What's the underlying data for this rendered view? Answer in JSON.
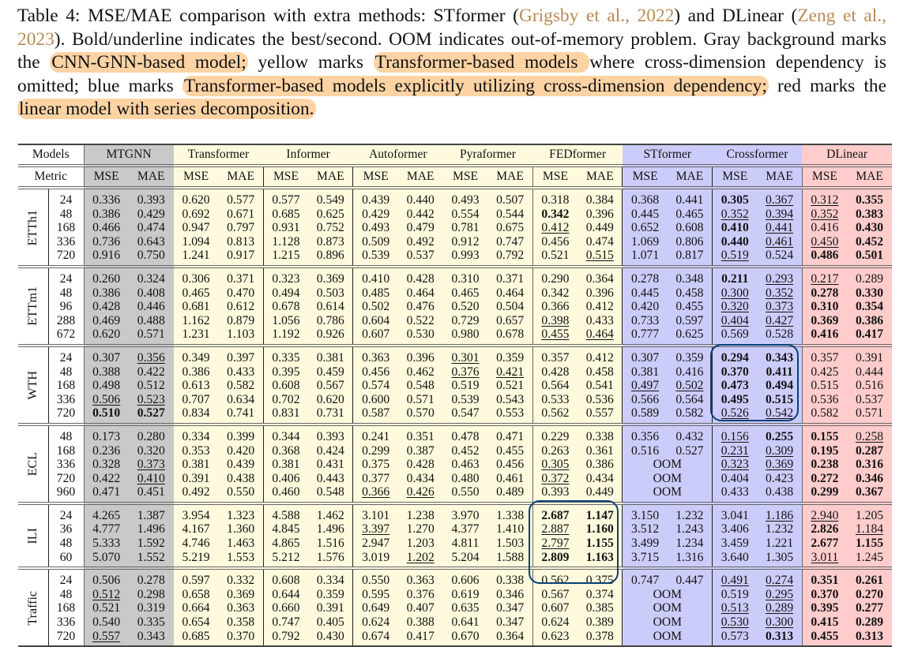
{
  "caption": {
    "p1": "Table 4: MSE/MAE comparison with extra methods: STformer (",
    "cite1": "Grigsby et al., 2022",
    "p2": ") and DLinear (",
    "cite2": "Zeng et al., 2023",
    "p3": "). Bold/underline indicates the best/second. OOM indicates out-of-memory problem. Gray background marks the ",
    "hl1": "CNN-GNN-based model;",
    "p4": " yellow marks ",
    "hl2": "Transformer-based models ",
    "p5": "where cross-dimension dependency is omitted; blue marks ",
    "hl3": "Transformer-based models explicitly utilizing cross-dimension dependency;",
    "p6": " red marks the ",
    "hl4": "linear model with series decomposition."
  },
  "table": {
    "models_label": "Models",
    "metric_label": "Metric",
    "models": [
      {
        "name": "MTGNN",
        "group": "gray"
      },
      {
        "name": "Transformer",
        "group": "yellow"
      },
      {
        "name": "Informer",
        "group": "yellow"
      },
      {
        "name": "Autoformer",
        "group": "yellow"
      },
      {
        "name": "Pyraformer",
        "group": "yellow"
      },
      {
        "name": "FEDformer",
        "group": "yellow"
      },
      {
        "name": "STformer",
        "group": "blue"
      },
      {
        "name": "Crossformer",
        "group": "blue"
      },
      {
        "name": "DLinear",
        "group": "red"
      }
    ],
    "metrics": [
      "MSE",
      "MAE"
    ],
    "colors": {
      "gray": "#c9c9c9",
      "yellow": "#fffadd",
      "blue": "#ccccfa",
      "red": "#ffcccc",
      "highlight": "#fdd3a4",
      "annotation": "#0b3f79"
    },
    "datasets": [
      {
        "name": "ETTh1",
        "rows": [
          {
            "h": "24",
            "v": [
              "0.336",
              "0.393",
              "0.620",
              "0.577",
              "0.577",
              "0.549",
              "0.439",
              "0.440",
              "0.493",
              "0.507",
              "0.318",
              "0.384",
              "0.368",
              "0.441",
              "**0.305",
              "_0.367",
              "_0.312",
              "**0.355"
            ]
          },
          {
            "h": "48",
            "v": [
              "0.386",
              "0.429",
              "0.692",
              "0.671",
              "0.685",
              "0.625",
              "0.429",
              "0.442",
              "0.554",
              "0.544",
              "**0.342",
              "0.396",
              "0.445",
              "0.465",
              "_0.352",
              "_0.394",
              "_0.352",
              "**0.383"
            ]
          },
          {
            "h": "168",
            "v": [
              "0.466",
              "0.474",
              "0.947",
              "0.797",
              "0.931",
              "0.752",
              "0.493",
              "0.479",
              "0.781",
              "0.675",
              "_0.412",
              "0.449",
              "0.652",
              "0.608",
              "**0.410",
              "_0.441",
              "0.416",
              "**0.430"
            ]
          },
          {
            "h": "336",
            "v": [
              "0.736",
              "0.643",
              "1.094",
              "0.813",
              "1.128",
              "0.873",
              "0.509",
              "0.492",
              "0.912",
              "0.747",
              "0.456",
              "0.474",
              "1.069",
              "0.806",
              "**0.440",
              "_0.461",
              "_0.450",
              "**0.452"
            ]
          },
          {
            "h": "720",
            "v": [
              "0.916",
              "0.750",
              "1.241",
              "0.917",
              "1.215",
              "0.896",
              "0.539",
              "0.537",
              "0.993",
              "0.792",
              "0.521",
              "_0.515",
              "1.071",
              "0.817",
              "_0.519",
              "0.524",
              "**0.486",
              "**0.501"
            ]
          }
        ]
      },
      {
        "name": "ETTm1",
        "rows": [
          {
            "h": "24",
            "v": [
              "0.260",
              "0.324",
              "0.306",
              "0.371",
              "0.323",
              "0.369",
              "0.410",
              "0.428",
              "0.310",
              "0.371",
              "0.290",
              "0.364",
              "0.278",
              "0.348",
              "**0.211",
              "_0.293",
              "_0.217",
              "0.289"
            ]
          },
          {
            "h": "48",
            "v": [
              "0.386",
              "0.408",
              "0.465",
              "0.470",
              "0.494",
              "0.503",
              "0.485",
              "0.464",
              "0.465",
              "0.464",
              "0.342",
              "0.396",
              "0.445",
              "0.458",
              "_0.300",
              "_0.352",
              "**0.278",
              "**0.330"
            ]
          },
          {
            "h": "96",
            "v": [
              "0.428",
              "0.446",
              "0.681",
              "0.612",
              "0.678",
              "0.614",
              "0.502",
              "0.476",
              "0.520",
              "0.504",
              "0.366",
              "0.412",
              "0.420",
              "0.455",
              "_0.320",
              "_0.373",
              "**0.310",
              "**0.354"
            ]
          },
          {
            "h": "288",
            "v": [
              "0.469",
              "0.488",
              "1.162",
              "0.879",
              "1.056",
              "0.786",
              "0.604",
              "0.522",
              "0.729",
              "0.657",
              "_0.398",
              "0.433",
              "0.733",
              "0.597",
              "_0.404",
              "_0.427",
              "**0.369",
              "**0.386"
            ]
          },
          {
            "h": "672",
            "v": [
              "0.620",
              "0.571",
              "1.231",
              "1.103",
              "1.192",
              "0.926",
              "0.607",
              "0.530",
              "0.980",
              "0.678",
              "_0.455",
              "_0.464",
              "0.777",
              "0.625",
              "0.569",
              "0.528",
              "**0.416",
              "**0.417"
            ]
          }
        ]
      },
      {
        "name": "WTH",
        "rows": [
          {
            "h": "24",
            "v": [
              "0.307",
              "_0.356",
              "0.349",
              "0.397",
              "0.335",
              "0.381",
              "0.363",
              "0.396",
              "_0.301",
              "0.359",
              "0.357",
              "0.412",
              "0.307",
              "0.359",
              "**0.294",
              "**0.343",
              "0.357",
              "0.391"
            ]
          },
          {
            "h": "48",
            "v": [
              "0.388",
              "0.422",
              "0.386",
              "0.433",
              "0.395",
              "0.459",
              "0.456",
              "0.462",
              "_0.376",
              "_0.421",
              "0.428",
              "0.458",
              "0.381",
              "0.416",
              "**0.370",
              "**0.411",
              "0.425",
              "0.444"
            ]
          },
          {
            "h": "168",
            "v": [
              "0.498",
              "0.512",
              "0.613",
              "0.582",
              "0.608",
              "0.567",
              "0.574",
              "0.548",
              "0.519",
              "0.521",
              "0.564",
              "0.541",
              "_0.497",
              "_0.502",
              "**0.473",
              "**0.494",
              "0.515",
              "0.516"
            ]
          },
          {
            "h": "336",
            "v": [
              "_0.506",
              "_0.523",
              "0.707",
              "0.634",
              "0.702",
              "0.620",
              "0.600",
              "0.571",
              "0.539",
              "0.543",
              "0.533",
              "0.536",
              "0.566",
              "0.564",
              "**0.495",
              "**0.515",
              "0.536",
              "0.537"
            ]
          },
          {
            "h": "720",
            "v": [
              "**0.510",
              "**0.527",
              "0.834",
              "0.741",
              "0.831",
              "0.731",
              "0.587",
              "0.570",
              "0.547",
              "0.553",
              "0.562",
              "0.557",
              "0.589",
              "0.582",
              "_0.526",
              "_0.542",
              "0.582",
              "0.571"
            ]
          }
        ]
      },
      {
        "name": "ECL",
        "rows": [
          {
            "h": "48",
            "v": [
              "0.173",
              "0.280",
              "0.334",
              "0.399",
              "0.344",
              "0.393",
              "0.241",
              "0.351",
              "0.478",
              "0.471",
              "0.229",
              "0.338",
              "0.356",
              "0.432",
              "_0.156",
              "**0.255",
              "**0.155",
              "_0.258"
            ]
          },
          {
            "h": "168",
            "v": [
              "0.236",
              "0.320",
              "0.353",
              "0.420",
              "0.368",
              "0.424",
              "0.299",
              "0.387",
              "0.452",
              "0.455",
              "0.263",
              "0.361",
              "0.516",
              "0.527",
              "_0.231",
              "_0.309",
              "**0.195",
              "**0.287"
            ]
          },
          {
            "h": "336",
            "v": [
              "0.328",
              "_0.373",
              "0.381",
              "0.439",
              "0.381",
              "0.431",
              "0.375",
              "0.428",
              "0.463",
              "0.456",
              "_0.305",
              "0.386",
              "OOM",
              "",
              "_0.323",
              "_0.369",
              "**0.238",
              "**0.316"
            ]
          },
          {
            "h": "720",
            "v": [
              "0.422",
              "_0.410",
              "0.391",
              "0.438",
              "0.406",
              "0.443",
              "0.377",
              "0.434",
              "0.480",
              "0.461",
              "_0.372",
              "0.434",
              "OOM",
              "",
              "0.404",
              "0.423",
              "**0.272",
              "**0.346"
            ]
          },
          {
            "h": "960",
            "v": [
              "0.471",
              "0.451",
              "0.492",
              "0.550",
              "0.460",
              "0.548",
              "_0.366",
              "_0.426",
              "0.550",
              "0.489",
              "0.393",
              "0.449",
              "OOM",
              "",
              "0.433",
              "0.438",
              "**0.299",
              "**0.367"
            ]
          }
        ]
      },
      {
        "name": "ILI",
        "rows": [
          {
            "h": "24",
            "v": [
              "4.265",
              "1.387",
              "3.954",
              "1.323",
              "4.588",
              "1.462",
              "3.101",
              "1.238",
              "3.970",
              "1.338",
              "**2.687",
              "**1.147",
              "3.150",
              "1.232",
              "3.041",
              "_1.186",
              "_2.940",
              "1.205"
            ]
          },
          {
            "h": "36",
            "v": [
              "4.777",
              "1.496",
              "4.167",
              "1.360",
              "4.845",
              "1.496",
              "_3.397",
              "1.270",
              "4.377",
              "1.410",
              "_2.887",
              "**1.160",
              "3.512",
              "1.243",
              "3.406",
              "1.232",
              "**2.826",
              "_1.184"
            ]
          },
          {
            "h": "48",
            "v": [
              "5.333",
              "1.592",
              "4.746",
              "1.463",
              "4.865",
              "1.516",
              "2.947",
              "1.203",
              "4.811",
              "1.503",
              "_2.797",
              "**1.155",
              "3.499",
              "1.234",
              "3.459",
              "1.221",
              "**2.677",
              "**1.155"
            ]
          },
          {
            "h": "60",
            "v": [
              "5.070",
              "1.552",
              "5.219",
              "1.553",
              "5.212",
              "1.576",
              "3.019",
              "_1.202",
              "5.204",
              "1.588",
              "**2.809",
              "**1.163",
              "3.715",
              "1.316",
              "3.640",
              "1.305",
              "_3.011",
              "1.245"
            ]
          }
        ]
      },
      {
        "name": "Traffic",
        "rows": [
          {
            "h": "24",
            "v": [
              "0.506",
              "0.278",
              "0.597",
              "0.332",
              "0.608",
              "0.334",
              "0.550",
              "0.363",
              "0.606",
              "0.338",
              "0.562",
              "0.375",
              "0.747",
              "0.447",
              "_0.491",
              "_0.274",
              "**0.351",
              "**0.261"
            ]
          },
          {
            "h": "48",
            "v": [
              "_0.512",
              "0.298",
              "0.658",
              "0.369",
              "0.644",
              "0.359",
              "0.595",
              "0.376",
              "0.619",
              "0.346",
              "0.567",
              "0.374",
              "OOM",
              "",
              "0.519",
              "_0.295",
              "**0.370",
              "**0.270"
            ]
          },
          {
            "h": "168",
            "v": [
              "0.521",
              "0.319",
              "0.664",
              "0.363",
              "0.660",
              "0.391",
              "0.649",
              "0.407",
              "0.635",
              "0.347",
              "0.607",
              "0.385",
              "OOM",
              "",
              "_0.513",
              "_0.289",
              "**0.395",
              "**0.277"
            ]
          },
          {
            "h": "336",
            "v": [
              "0.540",
              "0.335",
              "0.654",
              "0.358",
              "0.747",
              "0.405",
              "0.624",
              "0.388",
              "0.641",
              "0.347",
              "0.624",
              "0.389",
              "OOM",
              "",
              "_0.530",
              "_0.300",
              "**0.415",
              "**0.289"
            ]
          },
          {
            "h": "720",
            "v": [
              "_0.557",
              "0.343",
              "0.685",
              "0.370",
              "0.792",
              "0.430",
              "0.674",
              "0.417",
              "0.670",
              "0.364",
              "0.623",
              "0.378",
              "OOM",
              "",
              "0.573",
              "**0.313",
              "**0.455",
              "**0.313"
            ]
          }
        ]
      }
    ]
  },
  "annotations": [
    {
      "label": "Crossformer WTH hand-drawn circle"
    },
    {
      "label": "FEDformer ILI hand-drawn circle"
    }
  ]
}
